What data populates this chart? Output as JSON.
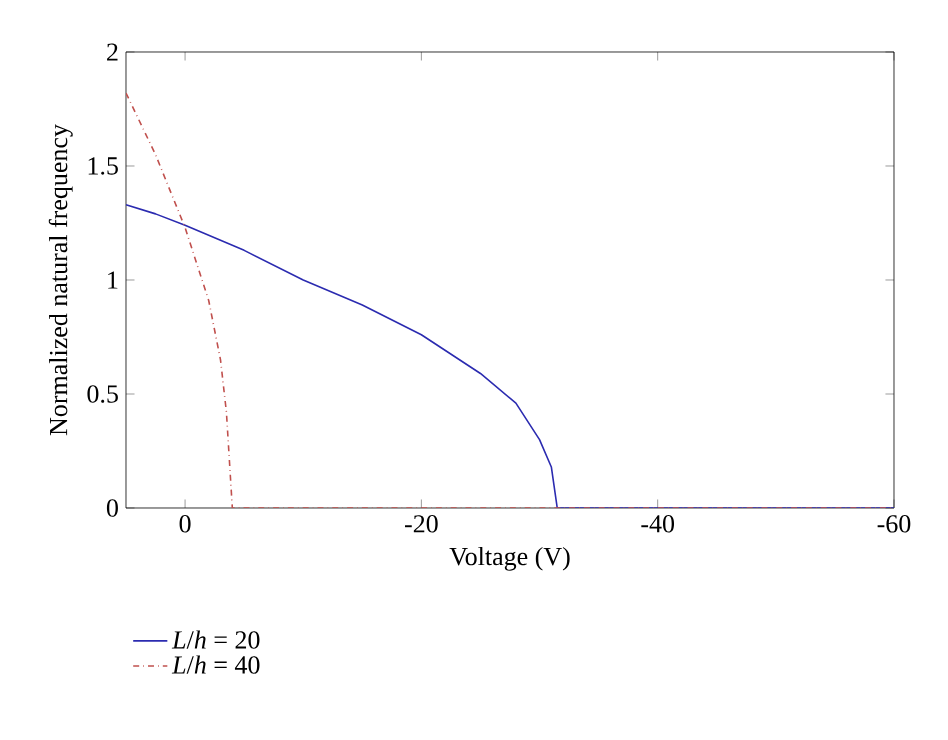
{
  "chart_data": {
    "type": "line",
    "xlabel": "Voltage (V)",
    "ylabel": "Normalized natural frequency",
    "xlim": [
      5,
      -60
    ],
    "ylim": [
      0,
      2
    ],
    "xticks": [
      0,
      -20,
      -40,
      -60
    ],
    "yticks": [
      0,
      0.5,
      1,
      1.5,
      2
    ],
    "grid": false,
    "legend": "bottom left",
    "series": [
      {
        "name": "*L*/*h* = 20",
        "color": "#2b2bb0",
        "line_style": "solid",
        "x": [
          5,
          2.5,
          0,
          -5,
          -10,
          -15,
          -20,
          -25,
          -28,
          -30,
          -31,
          -31.5,
          -40,
          -50,
          -60
        ],
        "values": [
          1.33,
          1.29,
          1.24,
          1.13,
          1.0,
          0.89,
          0.76,
          0.59,
          0.46,
          0.3,
          0.18,
          0,
          0,
          0,
          0
        ]
      },
      {
        "name": "*L*/*h* = 40",
        "color": "#c0504d",
        "line_style": "dashdot",
        "x": [
          5,
          2.5,
          0,
          -2,
          -3,
          -3.5,
          -4,
          -10,
          -20,
          -40,
          -60
        ],
        "values": [
          1.82,
          1.55,
          1.23,
          0.91,
          0.65,
          0.42,
          0,
          0,
          0,
          0,
          0
        ]
      }
    ]
  }
}
